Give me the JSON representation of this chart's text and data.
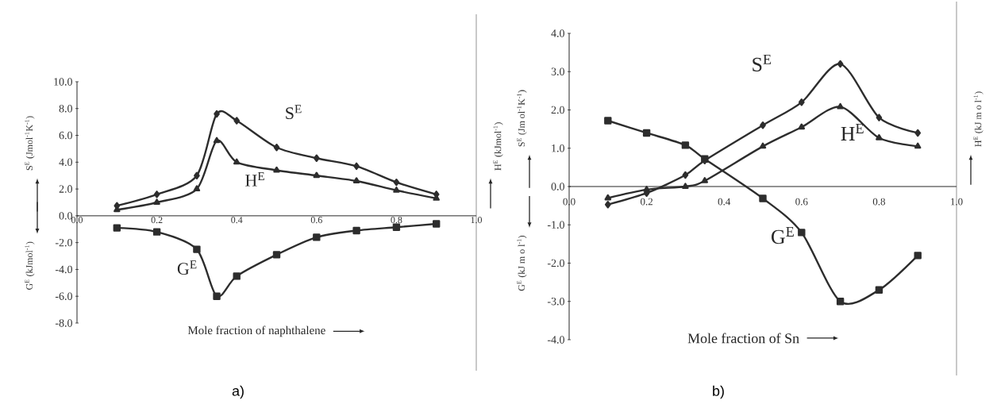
{
  "chart_data": [
    {
      "type": "line",
      "title": "a)",
      "xlabel": "Mole fraction of naphthalene",
      "ylabel": "S$^{E}$ (Jmol$^{-1}$K$^{-1}$)",
      "y2label": "H$^{E}$ (kJmol$^{-1}$)",
      "annotations": [
        "G$^{E}$ (kJmol$^{-1}$)"
      ],
      "x": [
        0.1,
        0.2,
        0.3,
        0.35,
        0.4,
        0.5,
        0.6,
        0.7,
        0.8,
        0.9
      ],
      "xlim": [
        0,
        1
      ],
      "xticks": [
        {
          "value": 0,
          "label": "0.0"
        },
        {
          "value": 0.2,
          "label": "0.2"
        },
        {
          "value": 0.4,
          "label": "0.4"
        },
        {
          "value": 0.6,
          "label": "0.6"
        },
        {
          "value": 0.8,
          "label": "0.8"
        },
        {
          "value": 1,
          "label": "1.0"
        }
      ],
      "ylim": [
        -8,
        10
      ],
      "yticks": [
        {
          "value": -8,
          "label": "-8.0"
        },
        {
          "value": -6,
          "label": "-6.0"
        },
        {
          "value": -4,
          "label": "-4.0"
        },
        {
          "value": -2,
          "label": "-2.0"
        },
        {
          "value": 0,
          "label": "0.0"
        },
        {
          "value": 2,
          "label": "2.0"
        },
        {
          "value": 4,
          "label": "4.0"
        },
        {
          "value": 6,
          "label": "6.0"
        },
        {
          "value": 8,
          "label": "8.0"
        },
        {
          "value": 10,
          "label": "10.0"
        }
      ],
      "series": [
        {
          "name": "S$^{E}$",
          "color": "#2d2d2d",
          "marker": "diamond",
          "values": [
            0.75,
            1.6,
            3.0,
            7.6,
            7.1,
            5.1,
            4.3,
            3.7,
            2.5,
            1.6
          ]
        },
        {
          "name": "H$^{E}$",
          "color": "#2d2d2d",
          "marker": "triangle",
          "values": [
            0.45,
            1.0,
            2.0,
            5.6,
            4.0,
            3.4,
            3.0,
            2.6,
            1.9,
            1.3
          ]
        },
        {
          "name": "G$^{E}$",
          "color": "#2d2d2d",
          "marker": "square",
          "values": [
            -0.9,
            -1.2,
            -2.5,
            -6.0,
            -4.5,
            -2.9,
            -1.6,
            -1.1,
            -0.85,
            -0.6
          ]
        }
      ]
    },
    {
      "type": "line",
      "title": "b)",
      "xlabel": "Mole fraction of Sn",
      "ylabel": "S$^{E}$ (Jm ol$^{-1}$K$^{-1}$)",
      "y2label": "H$^{E}$ (kJ m o l$^{-1}$)",
      "annotations": [
        "G$^{E}$ (kJ m o l$^{-1}$)"
      ],
      "x": [
        0.1,
        0.2,
        0.3,
        0.35,
        0.5,
        0.6,
        0.7,
        0.8,
        0.9
      ],
      "xlim": [
        0,
        1
      ],
      "xticks": [
        {
          "value": 0,
          "label": "0.0"
        },
        {
          "value": 0.2,
          "label": "0.2"
        },
        {
          "value": 0.4,
          "label": "0.4"
        },
        {
          "value": 0.6,
          "label": "0.6"
        },
        {
          "value": 0.8,
          "label": "0.8"
        },
        {
          "value": 1,
          "label": "1.0"
        }
      ],
      "ylim": [
        -4,
        4
      ],
      "yticks": [
        {
          "value": -4,
          "label": "-4.0"
        },
        {
          "value": -3,
          "label": "-3.0"
        },
        {
          "value": -2,
          "label": "-2.0"
        },
        {
          "value": -1,
          "label": "-1.0"
        },
        {
          "value": 0,
          "label": "0.0"
        },
        {
          "value": 1,
          "label": "1.0"
        },
        {
          "value": 2,
          "label": "2.0"
        },
        {
          "value": 3,
          "label": "3.0"
        },
        {
          "value": 4,
          "label": "4.0"
        }
      ],
      "series": [
        {
          "name": "S$^{E}$",
          "color": "#2d2d2d",
          "marker": "diamond",
          "values": [
            -0.47,
            -0.17,
            0.3,
            0.68,
            1.6,
            2.2,
            3.2,
            1.8,
            1.4
          ]
        },
        {
          "name": "H$^{E}$",
          "color": "#2d2d2d",
          "marker": "triangle",
          "values": [
            -0.3,
            -0.08,
            0.0,
            0.15,
            1.05,
            1.55,
            2.08,
            1.27,
            1.05
          ]
        },
        {
          "name": "G$^{E}$",
          "color": "#2d2d2d",
          "marker": "square",
          "values": [
            1.72,
            1.4,
            1.08,
            0.72,
            -0.31,
            -1.2,
            -3.0,
            -2.7,
            -1.8
          ]
        }
      ]
    }
  ]
}
